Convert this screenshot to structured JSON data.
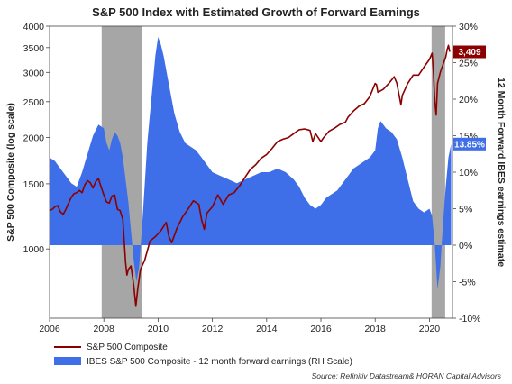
{
  "chart_data": {
    "type": "line",
    "title": "S&P 500 Index with Estimated Growth of Forward Earnings",
    "ylabel_left": "S&P 500 Composite (log scale)",
    "ylabel_right": "12 Month Forward IBES earnings estimate",
    "x_ticks": [
      "2006",
      "2008",
      "2010",
      "2012",
      "2014",
      "2016",
      "2018",
      "2020"
    ],
    "xlim": [
      2006,
      2020.85
    ],
    "y_left_scale": "log",
    "y_left_ticks": [
      "1000",
      "1500",
      "2000",
      "2500",
      "3000",
      "3500",
      "4000"
    ],
    "y_left_lim": [
      650,
      4000
    ],
    "y_right_ticks": [
      "-10%",
      "-5%",
      "0%",
      "5%",
      "10%",
      "15%",
      "20%",
      "25%",
      "30%"
    ],
    "y_right_lim": [
      -10,
      30
    ],
    "colors": {
      "sp500": "#8b0000",
      "earnings": "#3e6ee8",
      "recession": "#a6a6a6"
    },
    "recessions": [
      [
        2007.92,
        2009.42
      ],
      [
        2020.08,
        2020.58
      ]
    ],
    "callouts": [
      {
        "series": "sp500",
        "text": "3,409",
        "value": 3409,
        "color": "#8b0000"
      },
      {
        "series": "earnings",
        "text": "13.85%",
        "value": 13.85,
        "color": "#3e6ee8"
      }
    ],
    "series": [
      {
        "name": "S&P 500 Composite",
        "axis": "left",
        "style": "line",
        "x": [
          2006.0,
          2006.1,
          2006.2,
          2006.3,
          2006.4,
          2006.5,
          2006.6,
          2006.7,
          2006.8,
          2006.9,
          2007.0,
          2007.1,
          2007.2,
          2007.3,
          2007.4,
          2007.5,
          2007.6,
          2007.7,
          2007.8,
          2007.9,
          2008.0,
          2008.1,
          2008.2,
          2008.3,
          2008.4,
          2008.5,
          2008.6,
          2008.7,
          2008.75,
          2008.8,
          2008.85,
          2008.9,
          2009.0,
          2009.1,
          2009.18,
          2009.25,
          2009.35,
          2009.5,
          2009.7,
          2009.9,
          2010.1,
          2010.3,
          2010.4,
          2010.5,
          2010.7,
          2010.9,
          2011.1,
          2011.3,
          2011.5,
          2011.6,
          2011.7,
          2011.8,
          2012.0,
          2012.2,
          2012.4,
          2012.6,
          2012.8,
          2013.0,
          2013.2,
          2013.4,
          2013.6,
          2013.8,
          2014.0,
          2014.2,
          2014.4,
          2014.6,
          2014.8,
          2015.0,
          2015.2,
          2015.4,
          2015.6,
          2015.7,
          2015.8,
          2016.0,
          2016.1,
          2016.3,
          2016.5,
          2016.7,
          2016.9,
          2017.0,
          2017.2,
          2017.4,
          2017.6,
          2017.8,
          2018.0,
          2018.05,
          2018.1,
          2018.3,
          2018.5,
          2018.7,
          2018.8,
          2018.95,
          2019.0,
          2019.2,
          2019.4,
          2019.6,
          2019.8,
          2020.0,
          2020.1,
          2020.15,
          2020.2,
          2020.25,
          2020.3,
          2020.4,
          2020.5,
          2020.6,
          2020.65,
          2020.7,
          2020.75
        ],
        "values": [
          1270,
          1280,
          1300,
          1310,
          1260,
          1240,
          1280,
          1330,
          1380,
          1410,
          1420,
          1440,
          1420,
          1490,
          1530,
          1510,
          1460,
          1520,
          1550,
          1470,
          1400,
          1340,
          1330,
          1390,
          1400,
          1280,
          1270,
          1200,
          1050,
          920,
          850,
          880,
          900,
          800,
          700,
          780,
          880,
          930,
          1050,
          1080,
          1120,
          1180,
          1080,
          1040,
          1140,
          1220,
          1280,
          1350,
          1320,
          1200,
          1130,
          1250,
          1300,
          1400,
          1320,
          1400,
          1420,
          1480,
          1560,
          1640,
          1690,
          1760,
          1800,
          1870,
          1950,
          1980,
          2000,
          2050,
          2100,
          2110,
          2090,
          1950,
          2050,
          1950,
          2000,
          2080,
          2120,
          2170,
          2200,
          2270,
          2360,
          2430,
          2470,
          2580,
          2800,
          2780,
          2650,
          2700,
          2800,
          2920,
          2800,
          2450,
          2600,
          2800,
          2950,
          2950,
          3100,
          3250,
          3380,
          3000,
          2500,
          2300,
          2800,
          3000,
          3150,
          3300,
          3450,
          3550,
          3409
        ]
      },
      {
        "name": "IBES S&P 500 Composite - 12 month forward earnings (RH Scale)",
        "axis": "right",
        "style": "area",
        "x": [
          2006.0,
          2006.2,
          2006.4,
          2006.6,
          2006.8,
          2007.0,
          2007.2,
          2007.4,
          2007.6,
          2007.8,
          2008.0,
          2008.1,
          2008.2,
          2008.3,
          2008.4,
          2008.5,
          2008.6,
          2008.7,
          2008.8,
          2008.9,
          2009.0,
          2009.1,
          2009.2,
          2009.3,
          2009.4,
          2009.5,
          2009.6,
          2009.7,
          2009.8,
          2009.9,
          2010.0,
          2010.1,
          2010.2,
          2010.4,
          2010.6,
          2010.8,
          2011.0,
          2011.2,
          2011.4,
          2011.6,
          2011.8,
          2012.0,
          2012.3,
          2012.6,
          2012.9,
          2013.2,
          2013.5,
          2013.8,
          2014.1,
          2014.4,
          2014.7,
          2015.0,
          2015.2,
          2015.4,
          2015.6,
          2015.8,
          2016.0,
          2016.2,
          2016.4,
          2016.6,
          2016.8,
          2017.0,
          2017.2,
          2017.4,
          2017.6,
          2017.8,
          2018.0,
          2018.1,
          2018.2,
          2018.4,
          2018.6,
          2018.8,
          2019.0,
          2019.2,
          2019.4,
          2019.6,
          2019.8,
          2020.0,
          2020.1,
          2020.2,
          2020.3,
          2020.4,
          2020.5,
          2020.6,
          2020.7,
          2020.8
        ],
        "values": [
          12.0,
          11.5,
          10.5,
          9.5,
          8.5,
          8.0,
          10.0,
          12.5,
          15.0,
          16.5,
          16.0,
          14.0,
          13.0,
          14.5,
          15.5,
          15.0,
          14.0,
          12.0,
          9.0,
          6.0,
          2.0,
          -2.0,
          -5.0,
          -3.0,
          2.0,
          8.0,
          14.0,
          18.0,
          22.0,
          26.0,
          28.5,
          27.5,
          26.0,
          22.0,
          18.0,
          15.5,
          14.0,
          13.5,
          13.0,
          12.0,
          11.0,
          10.0,
          9.5,
          9.0,
          8.5,
          9.0,
          9.5,
          10.0,
          10.0,
          10.5,
          10.0,
          9.0,
          8.0,
          6.5,
          5.5,
          5.0,
          5.5,
          6.5,
          7.0,
          7.5,
          8.5,
          9.5,
          10.5,
          11.0,
          11.5,
          12.0,
          13.0,
          16.0,
          17.0,
          16.0,
          15.5,
          14.5,
          12.0,
          9.0,
          6.0,
          5.0,
          4.5,
          5.0,
          4.0,
          0.0,
          -6.0,
          -3.0,
          3.0,
          8.0,
          12.0,
          13.85
        ]
      }
    ],
    "source": "Source: Refinitiv Datastream& HORAN Capital Advisors"
  }
}
